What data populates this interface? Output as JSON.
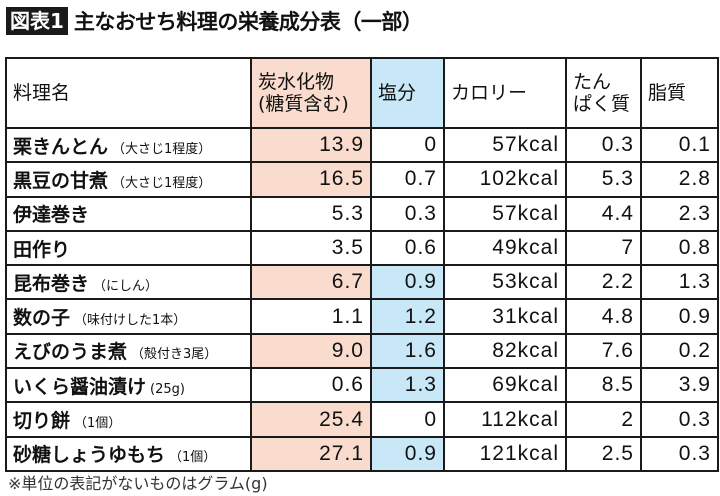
{
  "title": {
    "badge": "図表1",
    "text": "主なおせち料理の栄養成分表（一部）"
  },
  "colors": {
    "carb_highlight": "#f9dccd",
    "salt_highlight": "#c8e8f7",
    "border": "#1a1a1a"
  },
  "table": {
    "headers": [
      "料理名",
      "炭水化物\n(糖質含む)",
      "塩分",
      "カロリー",
      "たん\nぱく質",
      "脂質"
    ],
    "rows": [
      {
        "name": "栗きんとん",
        "note": "（大さじ1程度）",
        "carb": "13.9",
        "salt": "0",
        "kcal": "57kcal",
        "protein": "0.3",
        "fat": "0.1",
        "carb_hl": true,
        "salt_hl": false
      },
      {
        "name": "黒豆の甘煮",
        "note": "（大さじ1程度）",
        "carb": "16.5",
        "salt": "0.7",
        "kcal": "102kcal",
        "protein": "5.3",
        "fat": "2.8",
        "carb_hl": true,
        "salt_hl": false
      },
      {
        "name": "伊達巻き",
        "note": "",
        "carb": "5.3",
        "salt": "0.3",
        "kcal": "57kcal",
        "protein": "4.4",
        "fat": "2.3",
        "carb_hl": false,
        "salt_hl": false
      },
      {
        "name": "田作り",
        "note": "",
        "carb": "3.5",
        "salt": "0.6",
        "kcal": "49kcal",
        "protein": "7",
        "fat": "0.8",
        "carb_hl": false,
        "salt_hl": false
      },
      {
        "name": "昆布巻き",
        "note": "（にしん）",
        "carb": "6.7",
        "salt": "0.9",
        "kcal": "53kcal",
        "protein": "2.2",
        "fat": "1.3",
        "carb_hl": true,
        "salt_hl": true
      },
      {
        "name": "数の子",
        "note": "（味付けした1本）",
        "carb": "1.1",
        "salt": "1.2",
        "kcal": "31kcal",
        "protein": "4.8",
        "fat": "0.9",
        "carb_hl": false,
        "salt_hl": true
      },
      {
        "name": "えびのうま煮",
        "note": "（殻付き3尾）",
        "carb": "9.0",
        "salt": "1.6",
        "kcal": "82kcal",
        "protein": "7.6",
        "fat": "0.2",
        "carb_hl": true,
        "salt_hl": true
      },
      {
        "name": "いくら醤油漬け",
        "note": "(25g)",
        "carb": "0.6",
        "salt": "1.3",
        "kcal": "69kcal",
        "protein": "8.5",
        "fat": "3.9",
        "carb_hl": false,
        "salt_hl": true
      },
      {
        "name": "切り餅",
        "note": "（1個）",
        "carb": "25.4",
        "salt": "0",
        "kcal": "112kcal",
        "protein": "2",
        "fat": "0.3",
        "carb_hl": true,
        "salt_hl": false
      },
      {
        "name": "砂糖しょうゆもち",
        "note": "（1個）",
        "carb": "27.1",
        "salt": "0.9",
        "kcal": "121kcal",
        "protein": "2.5",
        "fat": "0.3",
        "carb_hl": true,
        "salt_hl": true
      }
    ]
  },
  "footnote": "※単位の表記がないものはグラム(g)"
}
